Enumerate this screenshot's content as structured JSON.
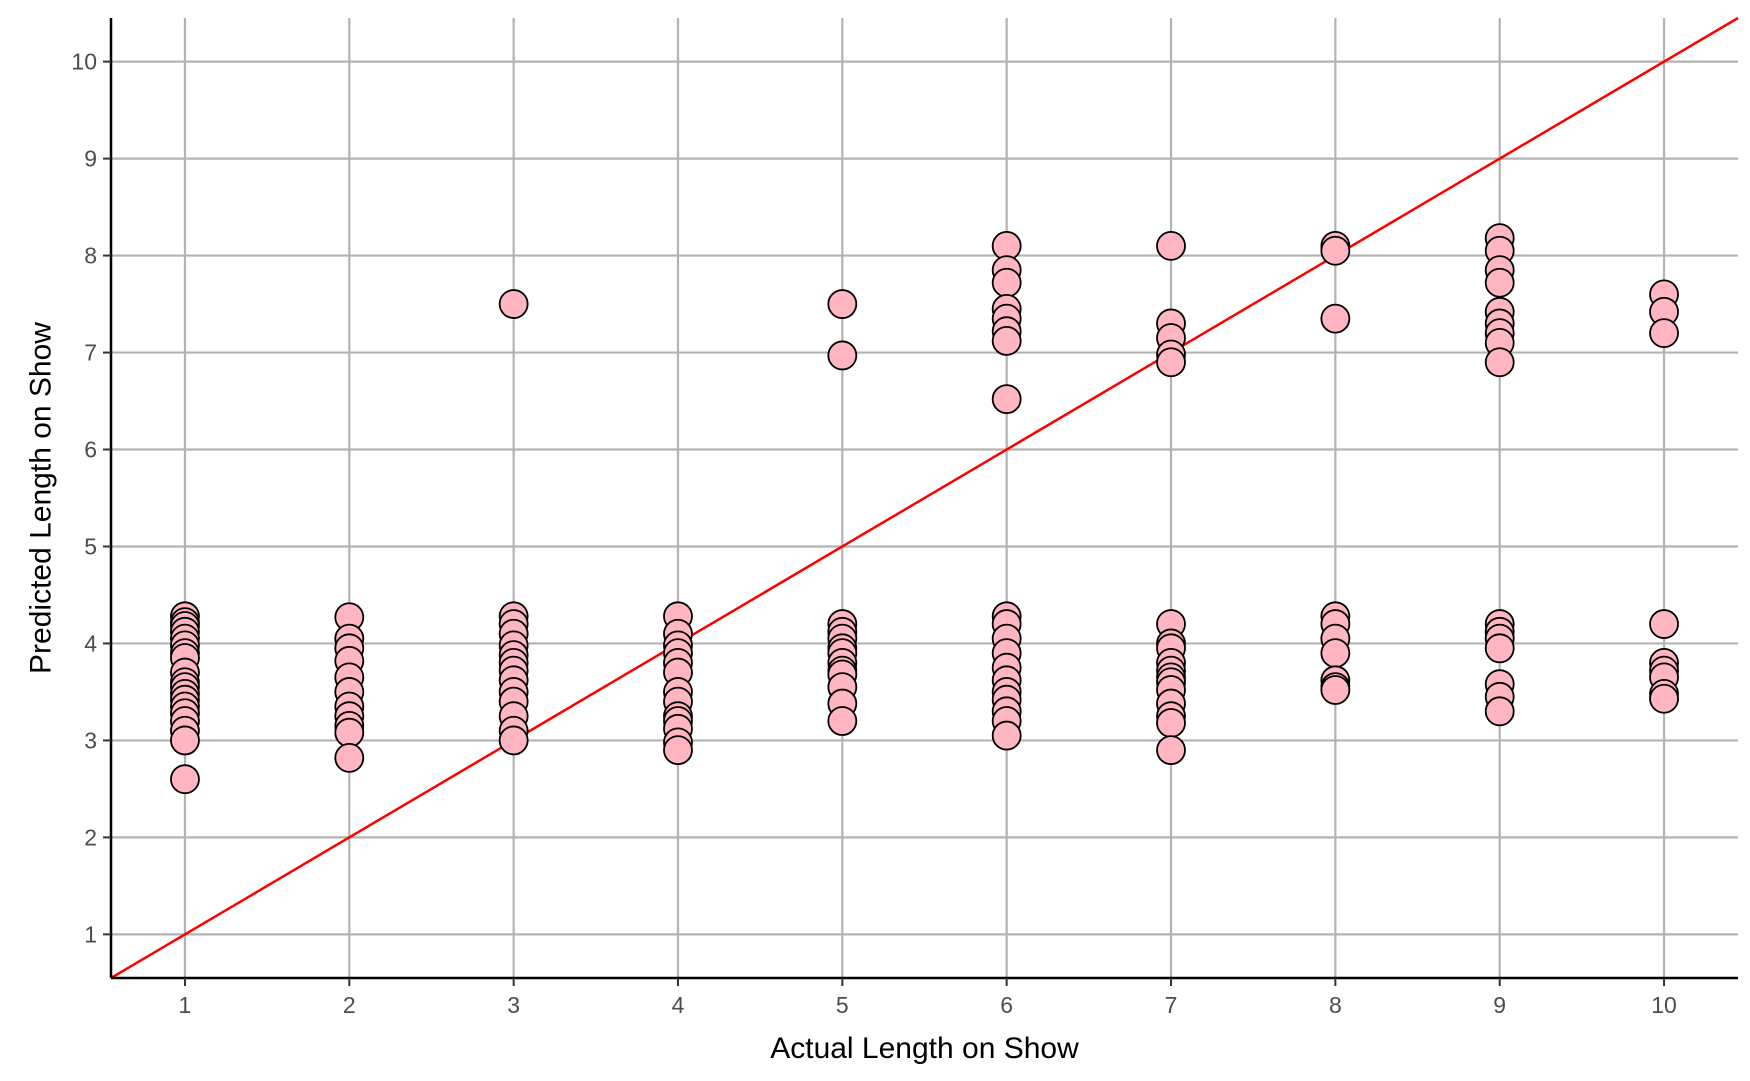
{
  "chart_data": {
    "type": "scatter",
    "title": "",
    "xlabel": "Actual Length on Show",
    "ylabel": "Predicted Length on Show",
    "xlim": [
      0.55,
      10.45
    ],
    "ylim": [
      0.55,
      10.45
    ],
    "x_ticks": [
      1,
      2,
      3,
      4,
      5,
      6,
      7,
      8,
      9,
      10
    ],
    "y_ticks": [
      1,
      2,
      3,
      4,
      5,
      6,
      7,
      8,
      9,
      10
    ],
    "grid": true,
    "point_fill": "#ffb6c1",
    "point_stroke": "#000000",
    "reference_line": {
      "type": "y = x",
      "color": "#ff0000"
    },
    "points": [
      [
        1,
        4.28
      ],
      [
        1,
        4.22
      ],
      [
        1,
        4.18
      ],
      [
        1,
        4.12
      ],
      [
        1,
        4.05
      ],
      [
        1,
        3.98
      ],
      [
        1,
        3.9
      ],
      [
        1,
        3.85
      ],
      [
        1,
        3.7
      ],
      [
        1,
        3.6
      ],
      [
        1,
        3.55
      ],
      [
        1,
        3.48
      ],
      [
        1,
        3.42
      ],
      [
        1,
        3.35
      ],
      [
        1,
        3.28
      ],
      [
        1,
        3.2
      ],
      [
        1,
        3.1
      ],
      [
        1,
        3.0
      ],
      [
        1,
        2.6
      ],
      [
        2,
        4.27
      ],
      [
        2,
        4.05
      ],
      [
        2,
        3.95
      ],
      [
        2,
        3.82
      ],
      [
        2,
        3.65
      ],
      [
        2,
        3.5
      ],
      [
        2,
        3.35
      ],
      [
        2,
        3.25
      ],
      [
        2,
        3.15
      ],
      [
        2,
        3.08
      ],
      [
        2,
        2.82
      ],
      [
        3,
        7.5
      ],
      [
        3,
        4.28
      ],
      [
        3,
        4.2
      ],
      [
        3,
        4.1
      ],
      [
        3,
        3.98
      ],
      [
        3,
        3.88
      ],
      [
        3,
        3.8
      ],
      [
        3,
        3.72
      ],
      [
        3,
        3.62
      ],
      [
        3,
        3.5
      ],
      [
        3,
        3.4
      ],
      [
        3,
        3.25
      ],
      [
        3,
        3.1
      ],
      [
        3,
        3.0
      ],
      [
        4,
        4.28
      ],
      [
        4,
        4.1
      ],
      [
        4,
        3.98
      ],
      [
        4,
        3.9
      ],
      [
        4,
        3.8
      ],
      [
        4,
        3.7
      ],
      [
        4,
        3.5
      ],
      [
        4,
        3.4
      ],
      [
        4,
        3.25
      ],
      [
        4,
        3.2
      ],
      [
        4,
        3.12
      ],
      [
        4,
        2.98
      ],
      [
        4,
        2.9
      ],
      [
        5,
        7.5
      ],
      [
        5,
        6.97
      ],
      [
        5,
        4.2
      ],
      [
        5,
        4.12
      ],
      [
        5,
        4.05
      ],
      [
        5,
        3.95
      ],
      [
        5,
        3.9
      ],
      [
        5,
        3.8
      ],
      [
        5,
        3.72
      ],
      [
        5,
        3.68
      ],
      [
        5,
        3.55
      ],
      [
        5,
        3.38
      ],
      [
        5,
        3.2
      ],
      [
        6,
        8.1
      ],
      [
        6,
        7.85
      ],
      [
        6,
        7.72
      ],
      [
        6,
        7.45
      ],
      [
        6,
        7.35
      ],
      [
        6,
        7.22
      ],
      [
        6,
        7.12
      ],
      [
        6,
        6.52
      ],
      [
        6,
        4.28
      ],
      [
        6,
        4.2
      ],
      [
        6,
        4.05
      ],
      [
        6,
        3.9
      ],
      [
        6,
        3.75
      ],
      [
        6,
        3.62
      ],
      [
        6,
        3.5
      ],
      [
        6,
        3.42
      ],
      [
        6,
        3.3
      ],
      [
        6,
        3.2
      ],
      [
        6,
        3.05
      ],
      [
        7,
        8.1
      ],
      [
        7,
        7.3
      ],
      [
        7,
        7.15
      ],
      [
        7,
        6.98
      ],
      [
        7,
        6.9
      ],
      [
        7,
        4.2
      ],
      [
        7,
        4.0
      ],
      [
        7,
        3.95
      ],
      [
        7,
        3.8
      ],
      [
        7,
        3.72
      ],
      [
        7,
        3.65
      ],
      [
        7,
        3.6
      ],
      [
        7,
        3.52
      ],
      [
        7,
        3.38
      ],
      [
        7,
        3.25
      ],
      [
        7,
        3.18
      ],
      [
        7,
        2.9
      ],
      [
        8,
        8.1
      ],
      [
        8,
        8.05
      ],
      [
        8,
        7.35
      ],
      [
        8,
        4.28
      ],
      [
        8,
        4.2
      ],
      [
        8,
        4.05
      ],
      [
        8,
        3.9
      ],
      [
        8,
        3.62
      ],
      [
        8,
        3.55
      ],
      [
        8,
        3.52
      ],
      [
        9,
        8.18
      ],
      [
        9,
        8.05
      ],
      [
        9,
        7.85
      ],
      [
        9,
        7.72
      ],
      [
        9,
        7.42
      ],
      [
        9,
        7.3
      ],
      [
        9,
        7.2
      ],
      [
        9,
        7.1
      ],
      [
        9,
        6.9
      ],
      [
        9,
        4.2
      ],
      [
        9,
        4.12
      ],
      [
        9,
        4.05
      ],
      [
        9,
        3.95
      ],
      [
        9,
        3.58
      ],
      [
        9,
        3.45
      ],
      [
        9,
        3.3
      ],
      [
        10,
        7.6
      ],
      [
        10,
        7.42
      ],
      [
        10,
        7.2
      ],
      [
        10,
        4.2
      ],
      [
        10,
        3.8
      ],
      [
        10,
        3.72
      ],
      [
        10,
        3.65
      ],
      [
        10,
        3.48
      ],
      [
        10,
        3.43
      ]
    ]
  }
}
